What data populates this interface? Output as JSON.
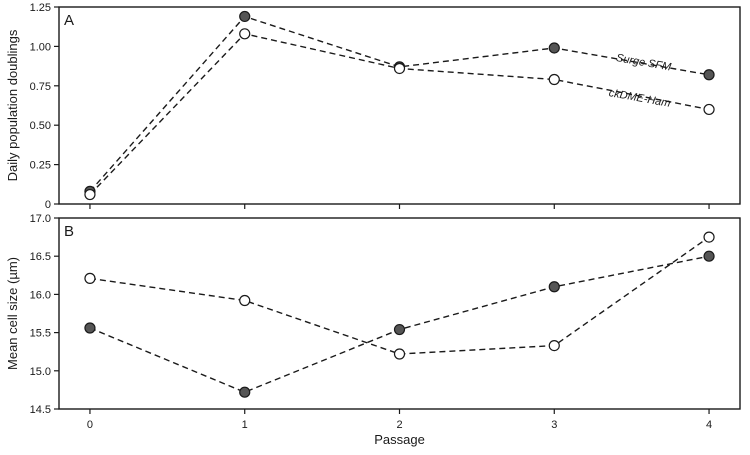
{
  "chart_data": [
    {
      "type": "line",
      "panel_label": "A",
      "ylabel": "Daily population doublings",
      "xlabel": "",
      "x": [
        0,
        1,
        2,
        3,
        4
      ],
      "xlim": [
        -0.2,
        4.2
      ],
      "ylim": [
        0,
        1.25
      ],
      "yticks": [
        0,
        0.25,
        0.5,
        0.75,
        1.0,
        1.25
      ],
      "ytick_labels": [
        "0",
        "0.25",
        "0.50",
        "0.75",
        "1.00",
        "1.25"
      ],
      "xtick_labels": [],
      "grid": false,
      "series": [
        {
          "name": "Surge SFM",
          "marker_fill": "#555555",
          "values": [
            0.08,
            1.19,
            0.87,
            0.99,
            0.82
          ]
        },
        {
          "name": "ckDME-Ham",
          "marker_fill": "#ffffff",
          "values": [
            0.06,
            1.08,
            0.86,
            0.79,
            0.6
          ]
        }
      ]
    },
    {
      "type": "line",
      "panel_label": "B",
      "ylabel": "Mean cell size (µm)",
      "xlabel": "Passage",
      "x": [
        0,
        1,
        2,
        3,
        4
      ],
      "xlim": [
        -0.2,
        4.2
      ],
      "ylim": [
        14.5,
        17.0
      ],
      "yticks": [
        14.5,
        15.0,
        15.5,
        16.0,
        16.5,
        17.0
      ],
      "ytick_labels": [
        "14.5",
        "15.0",
        "15.5",
        "16.0",
        "16.5",
        "17.0"
      ],
      "xtick_labels": [
        "0",
        "1",
        "2",
        "3",
        "4"
      ],
      "grid": false,
      "series": [
        {
          "name": "",
          "marker_fill": "#555555",
          "values": [
            15.56,
            14.72,
            15.54,
            16.1,
            16.5
          ]
        },
        {
          "name": "",
          "marker_fill": "#ffffff",
          "values": [
            16.21,
            15.92,
            15.22,
            15.33,
            16.75
          ]
        }
      ]
    }
  ]
}
